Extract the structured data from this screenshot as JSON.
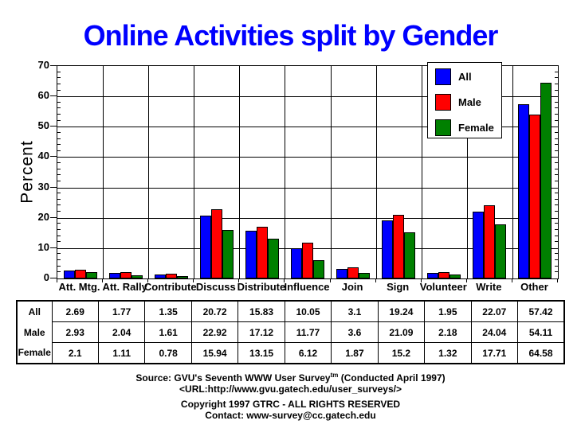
{
  "title": "Online Activities split by Gender",
  "colors": {
    "title": "#0000ff",
    "all": "#0000ff",
    "male": "#ff0000",
    "female": "#008000",
    "axis": "#000000",
    "background": "#ffffff"
  },
  "chart_data": {
    "type": "bar",
    "title": "Online Activities split by Gender",
    "categories": [
      "Att. Mtg.",
      "Att. Rally",
      "Contribute",
      "Discuss",
      "Distribute",
      "Influence",
      "Join",
      "Sign",
      "Volunteer",
      "Write",
      "Other"
    ],
    "series": [
      {
        "name": "All",
        "color": "#0000ff",
        "values": [
          2.69,
          1.77,
          1.35,
          20.72,
          15.83,
          10.05,
          3.1,
          19.24,
          1.95,
          22.07,
          57.42
        ]
      },
      {
        "name": "Male",
        "color": "#ff0000",
        "values": [
          2.93,
          2.04,
          1.61,
          22.92,
          17.12,
          11.77,
          3.6,
          21.09,
          2.18,
          24.04,
          54.11
        ]
      },
      {
        "name": "Female",
        "color": "#008000",
        "values": [
          2.1,
          1.11,
          0.78,
          15.94,
          13.15,
          6.12,
          1.87,
          15.2,
          1.32,
          17.71,
          64.58
        ]
      }
    ],
    "xlabel": "",
    "ylabel": "Percent",
    "ylim": [
      0,
      70
    ],
    "yticks": [
      0,
      10,
      20,
      30,
      40,
      50,
      60,
      70
    ],
    "ytick_minor_step": 2,
    "grid": true,
    "legend_position": "top-right-inside",
    "legend_entries": [
      "All",
      "Male",
      "Female"
    ]
  },
  "table": {
    "row_headers": [
      "All",
      "Male",
      "Female"
    ]
  },
  "footer": {
    "source_prefix": "Source: GVU's Seventh WWW User Survey",
    "source_sup": "tm",
    "source_suffix": " (Conducted April 1997)",
    "url_line": "<URL:http://www.gvu.gatech.edu/user_surveys/>",
    "copyright_line": "Copyright 1997 GTRC - ALL RIGHTS RESERVED",
    "contact_line": "Contact: www-survey@cc.gatech.edu"
  }
}
